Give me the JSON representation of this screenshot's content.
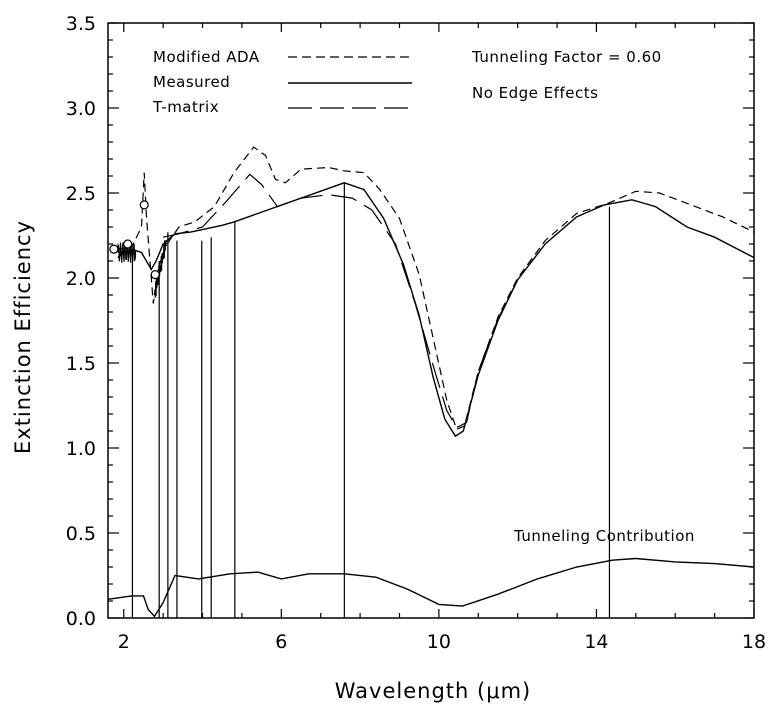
{
  "chart_data": {
    "type": "line",
    "title": "",
    "xlabel": "Wavelength (μm)",
    "ylabel": "Extinction Efficiency",
    "xlim": [
      1.6,
      18
    ],
    "ylim": [
      0,
      3.5
    ],
    "xticks": [
      2,
      6,
      10,
      14,
      18
    ],
    "yticks": [
      0.0,
      0.5,
      1.0,
      1.5,
      2.0,
      2.5,
      3.0,
      3.5
    ],
    "xtick_labels": [
      "2",
      "6",
      "10",
      "14",
      "18"
    ],
    "ytick_labels": [
      "0.0",
      "0.5",
      "1.0",
      "1.5",
      "2.0",
      "2.5",
      "3.0",
      "3.5"
    ],
    "grid": false,
    "legend_position": "top-left",
    "annotations": {
      "tunneling_factor": "Tunneling Factor = 0.60",
      "edge_effects": "No Edge Effects",
      "tunneling_contribution": "Tunneling Contribution"
    },
    "series": [
      {
        "name": "Modified ADA",
        "style": "short-dash",
        "x": [
          1.8,
          2.2,
          2.45,
          2.52,
          2.58,
          2.75,
          2.9,
          3.1,
          3.4,
          3.8,
          4.3,
          4.8,
          5.3,
          5.6,
          5.85,
          6.1,
          6.5,
          7.2,
          7.6,
          8.1,
          8.5,
          9.0,
          9.5,
          9.9,
          10.2,
          10.45,
          10.65,
          11.0,
          11.5,
          12.0,
          12.7,
          13.5,
          14.3,
          15.0,
          15.6,
          16.4,
          17.2,
          18.0
        ],
        "y": [
          2.17,
          2.18,
          2.3,
          2.62,
          2.35,
          1.85,
          2.08,
          2.2,
          2.3,
          2.33,
          2.42,
          2.62,
          2.77,
          2.72,
          2.58,
          2.56,
          2.64,
          2.65,
          2.63,
          2.62,
          2.52,
          2.35,
          2.02,
          1.6,
          1.28,
          1.11,
          1.13,
          1.45,
          1.77,
          2.0,
          2.22,
          2.38,
          2.44,
          2.51,
          2.5,
          2.43,
          2.36,
          2.27
        ]
      },
      {
        "name": "Measured",
        "style": "solid",
        "x": [
          1.85,
          2.0,
          2.2,
          2.45,
          2.7,
          2.82,
          3.0,
          3.3,
          3.7,
          4.5,
          4.8,
          7.6,
          8.1,
          8.6,
          9.1,
          9.5,
          9.85,
          10.15,
          10.42,
          10.62,
          11.0,
          11.5,
          12.0,
          12.7,
          13.5,
          14.2,
          14.9,
          15.5,
          16.3,
          17.0,
          18.0
        ],
        "y": [
          2.12,
          2.15,
          2.17,
          2.15,
          2.05,
          2.1,
          2.2,
          2.26,
          2.27,
          2.31,
          2.33,
          2.56,
          2.52,
          2.35,
          2.08,
          1.78,
          1.42,
          1.17,
          1.07,
          1.1,
          1.43,
          1.75,
          1.99,
          2.2,
          2.36,
          2.43,
          2.46,
          2.42,
          2.3,
          2.24,
          2.12
        ]
      },
      {
        "name": "T-matrix",
        "style": "long-dash",
        "x": [
          3.0,
          3.4,
          4.0,
          4.6,
          5.2,
          5.5,
          5.9,
          6.5,
          7.2,
          7.8,
          8.3,
          8.9,
          9.4,
          9.9,
          10.2,
          10.45,
          10.7,
          11.0,
          11.5,
          12.0
        ],
        "y": [
          2.24,
          2.26,
          2.3,
          2.45,
          2.61,
          2.55,
          2.42,
          2.47,
          2.49,
          2.47,
          2.4,
          2.2,
          1.85,
          1.45,
          1.22,
          1.12,
          1.15,
          1.45,
          1.76,
          1.99
        ]
      },
      {
        "name": "Tunneling Contribution",
        "style": "solid",
        "x": [
          1.6,
          2.2,
          2.5,
          2.62,
          2.78,
          3.0,
          3.3,
          3.9,
          4.7,
          5.4,
          6.0,
          6.7,
          7.6,
          8.4,
          9.2,
          10.0,
          10.6,
          11.5,
          12.5,
          13.5,
          14.4,
          15.0,
          16.0,
          17.0,
          18.0
        ],
        "y": [
          0.11,
          0.13,
          0.13,
          0.05,
          0.01,
          0.09,
          0.25,
          0.23,
          0.26,
          0.27,
          0.23,
          0.26,
          0.26,
          0.24,
          0.17,
          0.08,
          0.07,
          0.14,
          0.23,
          0.3,
          0.34,
          0.35,
          0.33,
          0.32,
          0.3
        ]
      }
    ],
    "measured_noisy_segment": {
      "x_range": [
        1.85,
        2.3
      ],
      "y_center": 2.15,
      "amplitude": 0.06
    },
    "vertical_lines": [
      {
        "x": 2.22,
        "y_top": 2.17
      },
      {
        "x": 2.9,
        "y_top": 2.1
      },
      {
        "x": 3.12,
        "y_top": 2.27
      },
      {
        "x": 3.35,
        "y_top": 2.22
      },
      {
        "x": 3.98,
        "y_top": 2.22
      },
      {
        "x": 4.22,
        "y_top": 2.24
      },
      {
        "x": 4.82,
        "y_top": 2.33
      },
      {
        "x": 7.6,
        "y_top": 2.56
      },
      {
        "x": 14.33,
        "y_top": 2.42
      }
    ],
    "markers": [
      {
        "x": 1.75,
        "y": 2.17
      },
      {
        "x": 2.1,
        "y": 2.2
      },
      {
        "x": 2.52,
        "y": 2.43
      },
      {
        "x": 2.8,
        "y": 2.02
      }
    ]
  }
}
